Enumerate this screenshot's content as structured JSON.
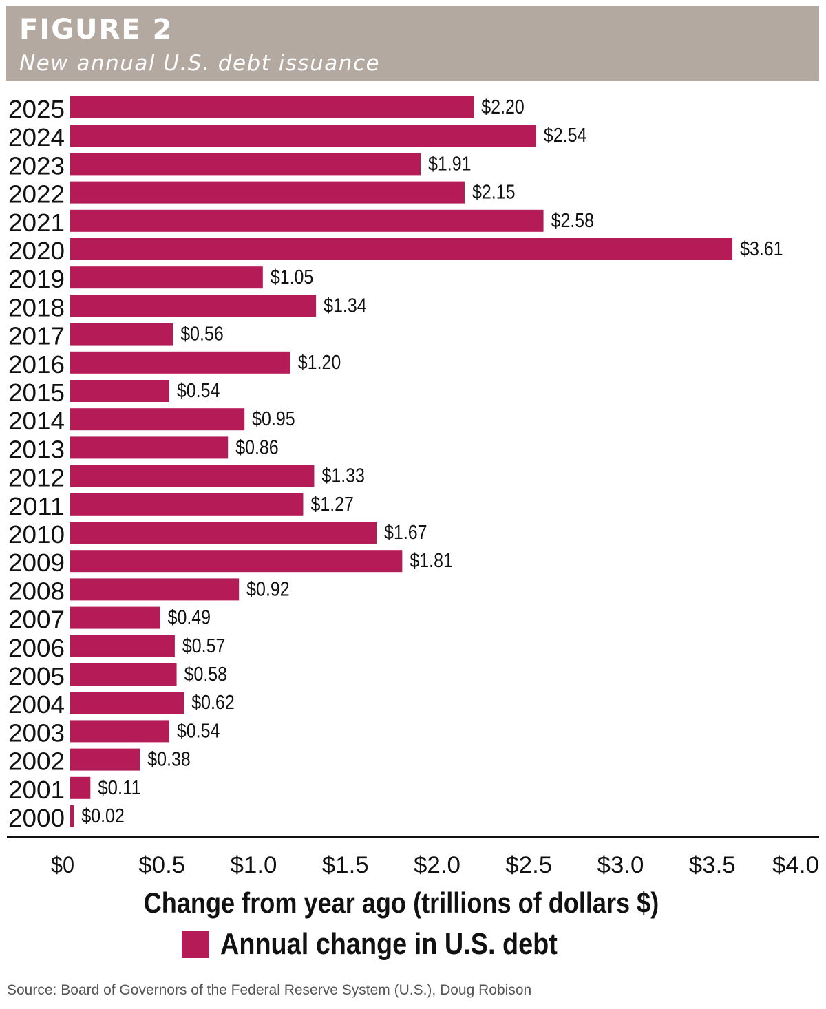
{
  "header": {
    "figure_label": "FIGURE 2",
    "title": "New annual U.S. debt issuance"
  },
  "colors": {
    "header_bg": "#b3a9a1",
    "bar": "#b51c57",
    "axis": "#111111"
  },
  "chart_data": {
    "type": "bar",
    "orientation": "horizontal",
    "title": "New annual U.S. debt issuance",
    "xlabel": "Change from year ago (trillions of dollars $)",
    "xlim": [
      0,
      4.0
    ],
    "x_ticks": [
      0,
      0.5,
      1.0,
      1.5,
      2.0,
      2.5,
      3.0,
      3.5,
      4.0
    ],
    "x_tick_labels": [
      "$0",
      "$0.5",
      "$1.0",
      "$1.5",
      "$2.0",
      "$2.5",
      "$3.0",
      "$3.5",
      "$4.0"
    ],
    "grid": false,
    "legend_position": "bottom",
    "categories": [
      "2025",
      "2024",
      "2023",
      "2022",
      "2021",
      "2020",
      "2019",
      "2018",
      "2017",
      "2016",
      "2015",
      "2014",
      "2013",
      "2012",
      "2011",
      "2010",
      "2009",
      "2008",
      "2007",
      "2006",
      "2005",
      "2004",
      "2003",
      "2002",
      "2001",
      "2000"
    ],
    "series": [
      {
        "name": "Annual change in U.S. debt",
        "values": [
          2.2,
          2.54,
          1.91,
          2.15,
          2.58,
          3.61,
          1.05,
          1.34,
          0.56,
          1.2,
          0.54,
          0.95,
          0.86,
          1.33,
          1.27,
          1.67,
          1.81,
          0.92,
          0.49,
          0.57,
          0.58,
          0.62,
          0.54,
          0.38,
          0.11,
          0.02
        ],
        "value_labels": [
          "$2.20",
          "$2.54",
          "$1.91",
          "$2.15",
          "$2.58",
          "$3.61",
          "$1.05",
          "$1.34",
          "$0.56",
          "$1.20",
          "$0.54",
          "$0.95",
          "$0.86",
          "$1.33",
          "$1.27",
          "$1.67",
          "$1.81",
          "$0.92",
          "$0.49",
          "$0.57",
          "$0.58",
          "$0.62",
          "$0.54",
          "$0.38",
          "$0.11",
          "$0.02"
        ]
      }
    ]
  },
  "legend": {
    "label": "Annual change in U.S. debt"
  },
  "source": "Source: Board of Governors of the Federal Reserve System (U.S.), Doug Robison"
}
